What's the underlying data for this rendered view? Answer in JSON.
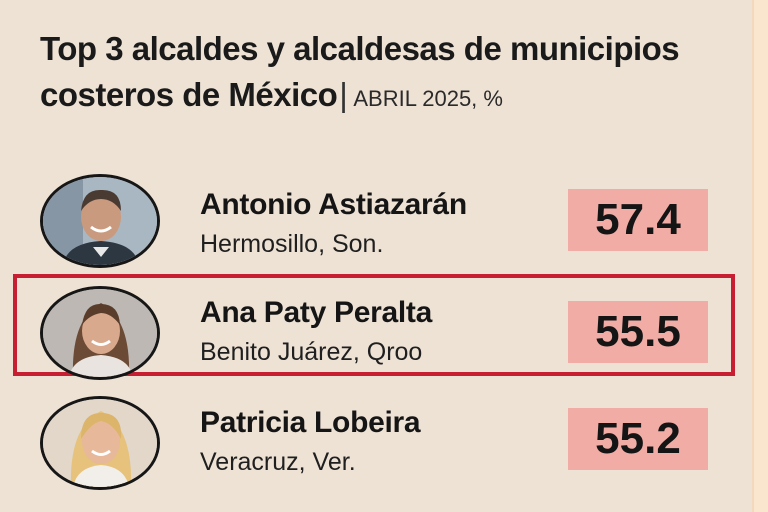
{
  "chart_data": {
    "type": "table",
    "title": "Top 3 alcaldes y alcaldesas de municipios costeros de México",
    "subtitle": "ABRIL 2025, %",
    "rows": [
      {
        "name": "Antonio Astiazarán",
        "place": "Hermosillo, Son.",
        "value": "57.4",
        "highlighted": false
      },
      {
        "name": "Ana Paty Peralta",
        "place": "Benito Juárez, Qroo",
        "value": "55.5",
        "highlighted": true
      },
      {
        "name": "Patricia Lobeira",
        "place": "Veracruz, Ver.",
        "value": "55.2",
        "highlighted": false
      }
    ],
    "colors": {
      "background": "#eee2d5",
      "value_box": "#f2aca6",
      "highlight_border": "#c81e31"
    }
  }
}
